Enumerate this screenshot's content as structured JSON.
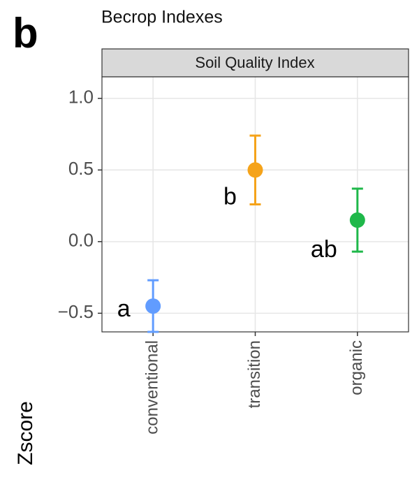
{
  "chart_data": {
    "type": "errorpoint",
    "panel_label": "b",
    "title": "Becrop Indexes",
    "facet": "Soil Quality Index",
    "ylabel": "Zscore",
    "categories": [
      "conventional",
      "transition",
      "organic"
    ],
    "values": [
      -0.45,
      0.5,
      0.15
    ],
    "errors": [
      0.18,
      0.24,
      0.22
    ],
    "colors": [
      "#619cff",
      "#f5a31a",
      "#1fb84a"
    ],
    "point_labels": [
      "a",
      "b",
      "ab"
    ],
    "ylim": [
      -0.63,
      1.15
    ],
    "yticks": [
      {
        "value": 1,
        "label": "1.0"
      },
      0.5,
      {
        "value": 0,
        "label": "0.0"
      },
      {
        "value": -0.5,
        "label": "−0.5"
      }
    ],
    "grid": true
  }
}
